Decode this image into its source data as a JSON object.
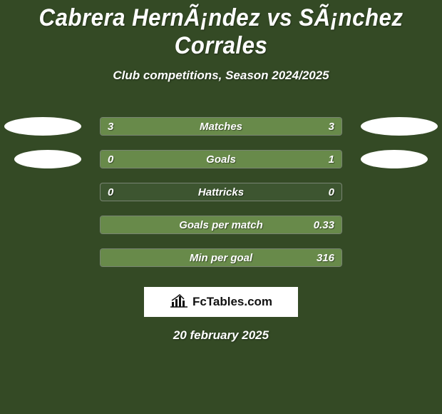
{
  "colors": {
    "background": "#344a25",
    "title_text": "#ffffff",
    "subtitle_text": "#ffffff",
    "stat_text": "#ffffff",
    "ellipse_left": "#ffffff",
    "ellipse_right": "#ffffff",
    "bar_left_fill": "#688a4a",
    "bar_right_fill": "#688a4a",
    "bar_track_bg": "#3d5530",
    "brand_border": "#ffffff",
    "brand_bg": "#ffffff",
    "brand_text": "#111111",
    "date_text": "#ffffff"
  },
  "title": "Cabrera HernÃ¡ndez vs SÃ¡nchez Corrales",
  "subtitle": "Club competitions, Season 2024/2025",
  "date": "20 february 2025",
  "brand_label": "FcTables.com",
  "stats": [
    {
      "label": "Matches",
      "left_value": "3",
      "right_value": "3",
      "left_pct": 50,
      "right_pct": 50,
      "show_ellipses": true
    },
    {
      "label": "Goals",
      "left_value": "0",
      "right_value": "1",
      "left_pct": 20,
      "right_pct": 80,
      "show_ellipses": true,
      "ellipse_narrow": true
    },
    {
      "label": "Hattricks",
      "left_value": "0",
      "right_value": "0",
      "left_pct": 0,
      "right_pct": 0,
      "show_ellipses": false
    },
    {
      "label": "Goals per match",
      "left_value": "",
      "right_value": "0.33",
      "left_pct": 0,
      "right_pct": 100,
      "show_ellipses": false
    },
    {
      "label": "Min per goal",
      "left_value": "",
      "right_value": "316",
      "left_pct": 0,
      "right_pct": 100,
      "show_ellipses": false
    }
  ]
}
